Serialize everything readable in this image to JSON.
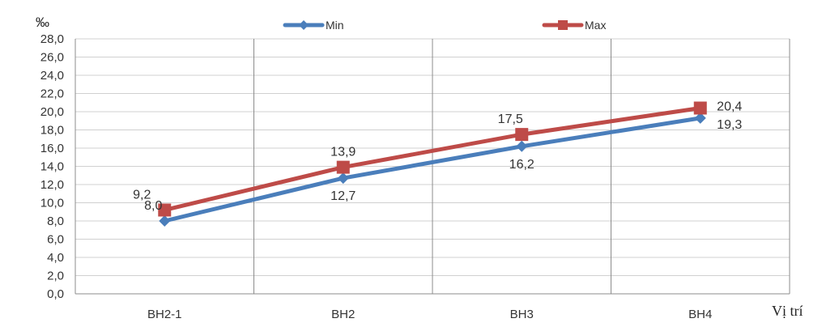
{
  "chart_data": {
    "type": "line",
    "title": "",
    "ylabel": "‰",
    "xlabel": "Vị trí",
    "categories": [
      "BH2-1",
      "BH2",
      "BH3",
      "BH4"
    ],
    "ylim": [
      0,
      28
    ],
    "ytick_step": 2,
    "ytick_labels": [
      "0,0",
      "2,0",
      "4,0",
      "6,0",
      "8,0",
      "10,0",
      "12,0",
      "14,0",
      "16,0",
      "18,0",
      "20,0",
      "22,0",
      "24,0",
      "26,0",
      "28,0"
    ],
    "grid": "horizontal and vertical",
    "legend": "top-center",
    "series": [
      {
        "name": "Min",
        "color": "#4a7ebb",
        "marker": "diamond",
        "values": [
          8.0,
          12.7,
          16.2,
          19.3
        ],
        "labels": [
          "8,0",
          "12,7",
          "16,2",
          "19,3"
        ]
      },
      {
        "name": "Max",
        "color": "#be4b48",
        "marker": "square",
        "values": [
          9.2,
          13.9,
          17.5,
          20.4
        ],
        "labels": [
          "9,2",
          "13,9",
          "17,5",
          "20,4"
        ]
      }
    ]
  }
}
